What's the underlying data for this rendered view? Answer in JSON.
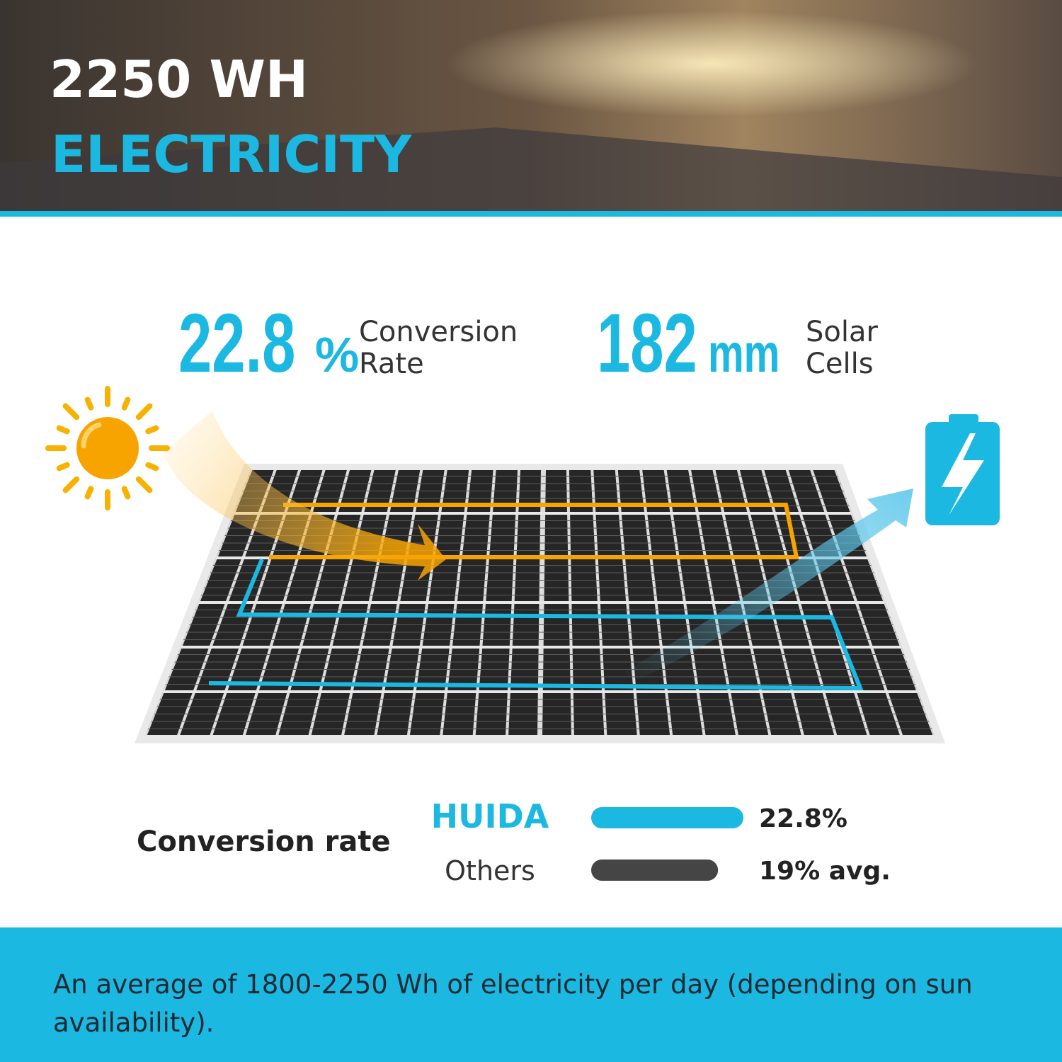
{
  "header": {
    "line1": "2250 WH",
    "line2": "ELECTRICITY"
  },
  "stats": [
    {
      "number": "22.8",
      "unit": "%",
      "label_lines": [
        "Conversion",
        "Rate"
      ]
    },
    {
      "number": "182",
      "unit": "mm",
      "label_lines": [
        "Solar",
        "Cells"
      ]
    }
  ],
  "comparison": {
    "title": "Conversion rate",
    "rows": [
      {
        "name": "HUIDA",
        "value": 22.8,
        "value_label": "22.8%",
        "color": "#1bb8e2"
      },
      {
        "name": "Others",
        "value": 19,
        "value_label": "19% avg.",
        "color": "#454545"
      }
    ]
  },
  "footer": {
    "text_lines": [
      "An average of 1800-2250 Wh of electricity per day (depending on sun",
      "availability)."
    ]
  }
}
